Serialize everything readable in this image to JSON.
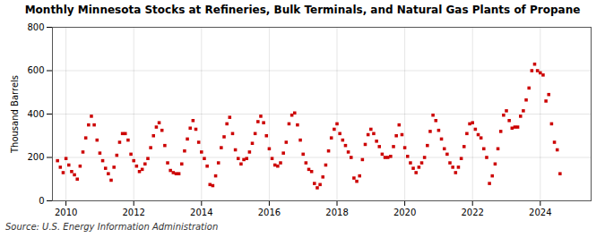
{
  "chart_data": {
    "type": "scatter",
    "title": "Monthly Minnesota Stocks at Refineries, Bulk Terminals, and Natural Gas Plants of Propane",
    "ylabel": "Thousand Barrels",
    "source": "Source: U.S. Energy Information Administration",
    "color": "#cc0000",
    "marker": "square",
    "grid": true,
    "xlim": [
      2009.6,
      2025.5
    ],
    "ylim": [
      0,
      800
    ],
    "xticks": [
      2010,
      2012,
      2014,
      2016,
      2018,
      2020,
      2022,
      2024
    ],
    "yticks": [
      0,
      200,
      400,
      600,
      800
    ],
    "x": [
      2009.75,
      2009.833,
      2009.917,
      2010.0,
      2010.083,
      2010.167,
      2010.25,
      2010.333,
      2010.417,
      2010.5,
      2010.583,
      2010.667,
      2010.75,
      2010.833,
      2010.917,
      2011.0,
      2011.083,
      2011.167,
      2011.25,
      2011.333,
      2011.417,
      2011.5,
      2011.583,
      2011.667,
      2011.75,
      2011.833,
      2011.917,
      2012.0,
      2012.083,
      2012.167,
      2012.25,
      2012.333,
      2012.417,
      2012.5,
      2012.583,
      2012.667,
      2012.75,
      2012.833,
      2012.917,
      2013.0,
      2013.083,
      2013.167,
      2013.25,
      2013.333,
      2013.417,
      2013.5,
      2013.583,
      2013.667,
      2013.75,
      2013.833,
      2013.917,
      2014.0,
      2014.083,
      2014.167,
      2014.25,
      2014.333,
      2014.417,
      2014.5,
      2014.583,
      2014.667,
      2014.75,
      2014.833,
      2014.917,
      2015.0,
      2015.083,
      2015.167,
      2015.25,
      2015.333,
      2015.417,
      2015.5,
      2015.583,
      2015.667,
      2015.75,
      2015.833,
      2015.917,
      2016.0,
      2016.083,
      2016.167,
      2016.25,
      2016.333,
      2016.417,
      2016.5,
      2016.583,
      2016.667,
      2016.75,
      2016.833,
      2016.917,
      2017.0,
      2017.083,
      2017.167,
      2017.25,
      2017.333,
      2017.417,
      2017.5,
      2017.583,
      2017.667,
      2017.75,
      2017.833,
      2017.917,
      2018.0,
      2018.083,
      2018.167,
      2018.25,
      2018.333,
      2018.417,
      2018.5,
      2018.583,
      2018.667,
      2018.75,
      2018.833,
      2018.917,
      2019.0,
      2019.083,
      2019.167,
      2019.25,
      2019.333,
      2019.417,
      2019.5,
      2019.583,
      2019.667,
      2019.75,
      2019.833,
      2019.917,
      2020.0,
      2020.083,
      2020.167,
      2020.25,
      2020.333,
      2020.417,
      2020.5,
      2020.583,
      2020.667,
      2020.75,
      2020.833,
      2020.917,
      2021.0,
      2021.083,
      2021.167,
      2021.25,
      2021.333,
      2021.417,
      2021.5,
      2021.583,
      2021.667,
      2021.75,
      2021.833,
      2021.917,
      2022.0,
      2022.083,
      2022.167,
      2022.25,
      2022.333,
      2022.417,
      2022.5,
      2022.583,
      2022.667,
      2022.75,
      2022.833,
      2022.917,
      2023.0,
      2023.083,
      2023.167,
      2023.25,
      2023.333,
      2023.417,
      2023.5,
      2023.583,
      2023.667,
      2023.75,
      2023.833,
      2023.917,
      2024.0,
      2024.083,
      2024.167,
      2024.25,
      2024.333,
      2024.417,
      2024.5,
      2024.583
    ],
    "values": [
      185,
      155,
      130,
      195,
      165,
      135,
      120,
      100,
      160,
      225,
      290,
      350,
      390,
      350,
      280,
      220,
      185,
      150,
      125,
      95,
      155,
      210,
      270,
      310,
      310,
      280,
      215,
      185,
      160,
      135,
      145,
      170,
      195,
      245,
      300,
      340,
      360,
      325,
      255,
      175,
      140,
      130,
      125,
      125,
      170,
      230,
      285,
      335,
      370,
      330,
      270,
      225,
      195,
      160,
      75,
      70,
      115,
      175,
      245,
      295,
      355,
      385,
      310,
      235,
      195,
      170,
      190,
      195,
      225,
      265,
      310,
      365,
      390,
      360,
      300,
      240,
      195,
      165,
      160,
      175,
      220,
      270,
      355,
      395,
      405,
      350,
      280,
      215,
      175,
      145,
      135,
      80,
      60,
      75,
      110,
      165,
      230,
      290,
      330,
      355,
      310,
      280,
      255,
      225,
      200,
      105,
      90,
      115,
      190,
      260,
      305,
      330,
      310,
      275,
      250,
      215,
      200,
      200,
      205,
      250,
      300,
      350,
      305,
      245,
      205,
      175,
      150,
      130,
      155,
      175,
      200,
      255,
      320,
      395,
      370,
      325,
      285,
      240,
      215,
      175,
      155,
      130,
      155,
      195,
      250,
      310,
      355,
      360,
      330,
      305,
      290,
      240,
      200,
      80,
      115,
      170,
      240,
      320,
      395,
      415,
      370,
      335,
      340,
      340,
      390,
      415,
      465,
      520,
      600,
      630,
      600,
      590,
      580,
      460,
      490,
      355,
      270,
      235,
      125
    ]
  }
}
